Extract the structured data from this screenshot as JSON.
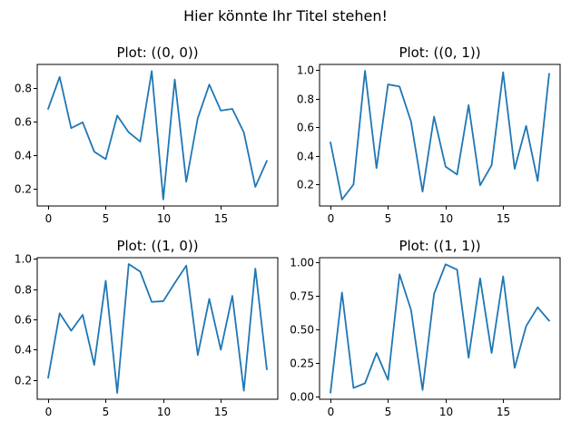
{
  "figure": {
    "suptitle": "Hier könnte Ihr Titel stehen!"
  },
  "chart_data": [
    {
      "type": "line",
      "title": "Plot: ((0, 0))",
      "x": [
        0,
        1,
        2,
        3,
        4,
        5,
        6,
        7,
        8,
        9,
        10,
        11,
        12,
        13,
        14,
        15,
        16,
        17,
        18,
        19
      ],
      "series": [
        {
          "values": [
            0.675,
            0.865,
            0.56,
            0.595,
            0.42,
            0.375,
            0.635,
            0.535,
            0.48,
            0.9,
            0.135,
            0.85,
            0.24,
            0.62,
            0.82,
            0.665,
            0.675,
            0.535,
            0.21,
            0.365
          ],
          "color": "#1f77b4"
        }
      ],
      "xlim": [
        -0.95,
        19.95
      ],
      "ylim": [
        0.096,
        0.94
      ],
      "xticks": [
        0,
        5,
        10,
        15
      ],
      "yticks": [
        0.2,
        0.4,
        0.6,
        0.8
      ],
      "ytick_labels": [
        "0.2",
        "0.4",
        "0.6",
        "0.8"
      ],
      "xlabel": "",
      "ylabel": "",
      "grid": false
    },
    {
      "type": "line",
      "title": "Plot: ((0, 1))",
      "x": [
        0,
        1,
        2,
        3,
        4,
        5,
        6,
        7,
        8,
        9,
        10,
        11,
        12,
        13,
        14,
        15,
        16,
        17,
        18,
        19
      ],
      "series": [
        {
          "values": [
            0.495,
            0.095,
            0.2,
            0.995,
            0.315,
            0.9,
            0.885,
            0.64,
            0.15,
            0.675,
            0.325,
            0.27,
            0.755,
            0.195,
            0.335,
            0.985,
            0.31,
            0.61,
            0.225,
            0.975
          ],
          "color": "#1f77b4"
        }
      ],
      "xlim": [
        -0.95,
        19.95
      ],
      "ylim": [
        0.05,
        1.04
      ],
      "xticks": [
        0,
        5,
        10,
        15
      ],
      "yticks": [
        0.2,
        0.4,
        0.6,
        0.8,
        1.0
      ],
      "ytick_labels": [
        "0.2",
        "0.4",
        "0.6",
        "0.8",
        "1.0"
      ],
      "xlabel": "",
      "ylabel": "",
      "grid": false
    },
    {
      "type": "line",
      "title": "Plot: ((1, 0))",
      "x": [
        0,
        1,
        2,
        3,
        4,
        5,
        6,
        7,
        8,
        9,
        10,
        11,
        12,
        13,
        14,
        15,
        16,
        17,
        18,
        19
      ],
      "series": [
        {
          "values": [
            0.215,
            0.64,
            0.525,
            0.63,
            0.3,
            0.855,
            0.115,
            0.965,
            0.915,
            0.715,
            0.72,
            0.84,
            0.955,
            0.365,
            0.735,
            0.4,
            0.755,
            0.13,
            0.935,
            0.27
          ],
          "color": "#1f77b4"
        }
      ],
      "xlim": [
        -0.95,
        19.95
      ],
      "ylim": [
        0.073,
        1.007
      ],
      "xticks": [
        0,
        5,
        10,
        15
      ],
      "yticks": [
        0.2,
        0.4,
        0.6,
        0.8,
        1.0
      ],
      "ytick_labels": [
        "0.2",
        "0.4",
        "0.6",
        "0.8",
        "1.0"
      ],
      "xlabel": "",
      "ylabel": "",
      "grid": false
    },
    {
      "type": "line",
      "title": "Plot: ((1, 1))",
      "x": [
        0,
        1,
        2,
        3,
        4,
        5,
        6,
        7,
        8,
        9,
        10,
        11,
        12,
        13,
        14,
        15,
        16,
        17,
        18,
        19
      ],
      "series": [
        {
          "values": [
            0.03,
            0.775,
            0.065,
            0.1,
            0.325,
            0.125,
            0.91,
            0.645,
            0.05,
            0.765,
            0.985,
            0.945,
            0.29,
            0.88,
            0.325,
            0.895,
            0.215,
            0.525,
            0.665,
            0.565
          ],
          "color": "#1f77b4"
        }
      ],
      "xlim": [
        -0.95,
        19.95
      ],
      "ylim": [
        -0.019,
        1.034
      ],
      "xticks": [
        0,
        5,
        10,
        15
      ],
      "yticks": [
        0.0,
        0.25,
        0.5,
        0.75,
        1.0
      ],
      "ytick_labels": [
        "0.00",
        "0.25",
        "0.50",
        "0.75",
        "1.00"
      ],
      "xlabel": "",
      "ylabel": "",
      "grid": false
    }
  ]
}
